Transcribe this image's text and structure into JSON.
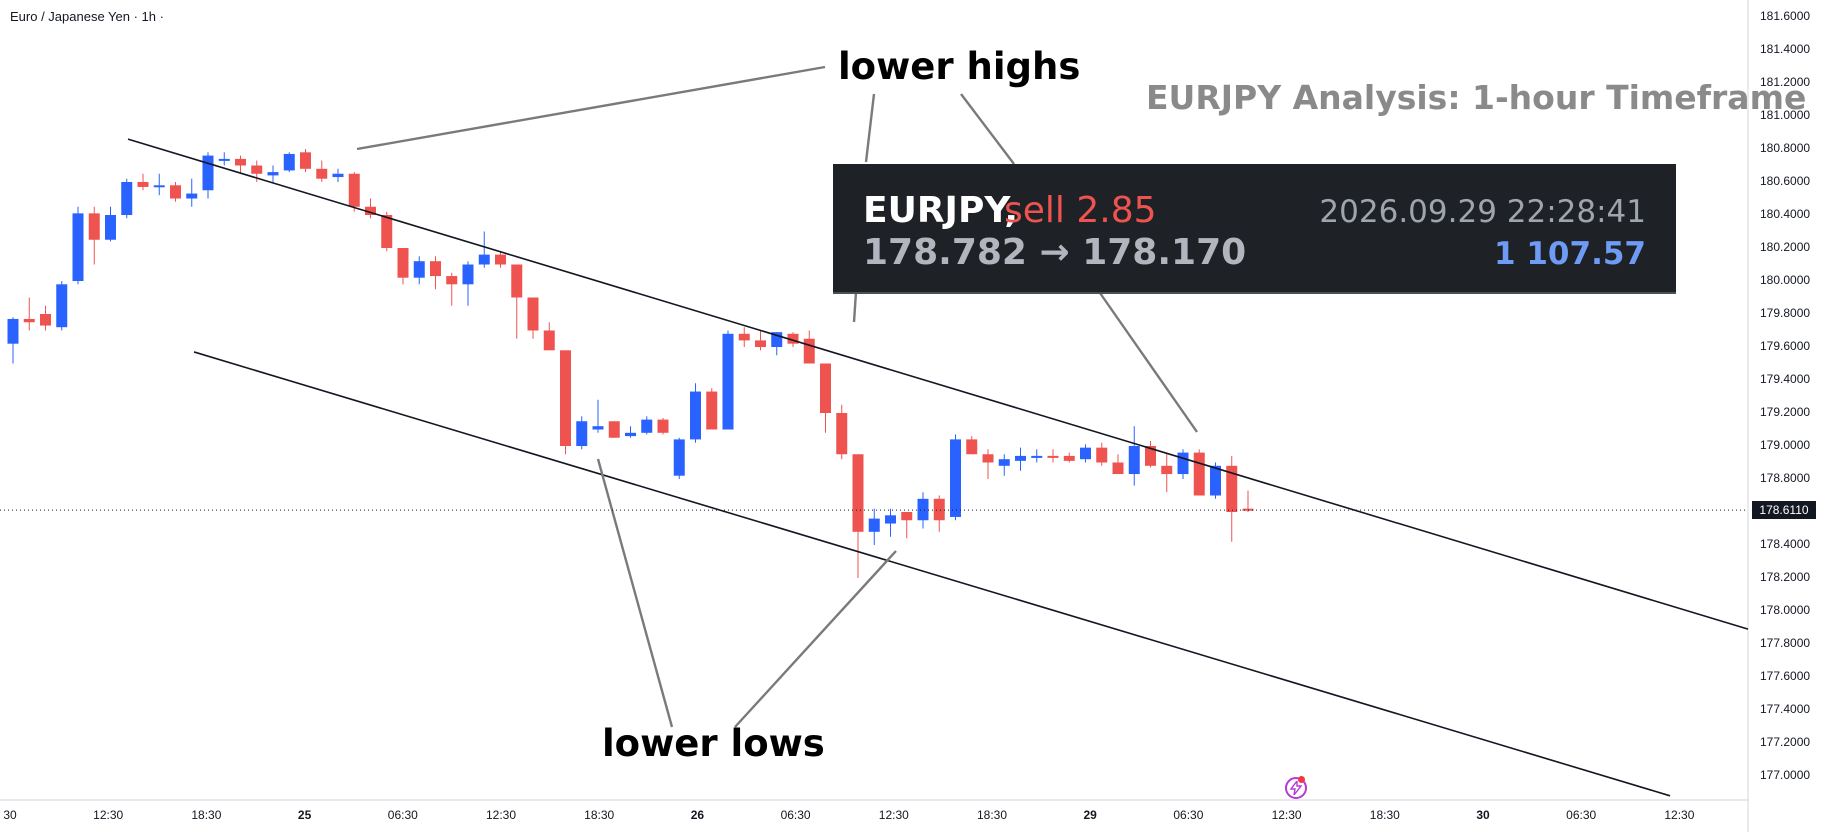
{
  "header": {
    "symbol_title": "Euro / Japanese Yen · 1h ·",
    "analysis_title": "EURJPY Analysis: 1-hour Timeframe"
  },
  "annotations": {
    "lower_highs": "lower highs",
    "lower_lows": "lower lows"
  },
  "trade": {
    "symbol": "EURJPY,",
    "side": "sell 2.85",
    "timestamp": "2026.09.29 22:28:41",
    "prices": "178.782 → 178.170",
    "profit": "1 107.57"
  },
  "colors": {
    "bull": "#2962ff",
    "bear": "#ef5350",
    "channel": "#131722",
    "pointer": "#7a7a7a"
  },
  "chart_data": {
    "type": "candlestick",
    "title": "Euro / Japanese Yen · 1h",
    "ylim": [
      176.9,
      181.65
    ],
    "y_ticks": [
      "181.6000",
      "181.4000",
      "181.2000",
      "181.0000",
      "180.8000",
      "180.6000",
      "180.4000",
      "180.2000",
      "180.0000",
      "179.8000",
      "179.6000",
      "179.4000",
      "179.2000",
      "179.0000",
      "178.8000",
      "178.4000",
      "178.2000",
      "178.0000",
      "177.8000",
      "177.6000",
      "177.4000",
      "177.2000",
      "177.0000"
    ],
    "x_ticks": [
      {
        "label": "30",
        "bold": false
      },
      {
        "label": "12:30",
        "bold": false
      },
      {
        "label": "18:30",
        "bold": false
      },
      {
        "label": "25",
        "bold": true
      },
      {
        "label": "06:30",
        "bold": false
      },
      {
        "label": "12:30",
        "bold": false
      },
      {
        "label": "18:30",
        "bold": false
      },
      {
        "label": "26",
        "bold": true
      },
      {
        "label": "06:30",
        "bold": false
      },
      {
        "label": "12:30",
        "bold": false
      },
      {
        "label": "18:30",
        "bold": false
      },
      {
        "label": "29",
        "bold": true
      },
      {
        "label": "06:30",
        "bold": false
      },
      {
        "label": "12:30",
        "bold": false
      },
      {
        "label": "18:30",
        "bold": false
      },
      {
        "label": "30",
        "bold": true
      },
      {
        "label": "06:30",
        "bold": false
      },
      {
        "label": "12:30",
        "bold": false
      }
    ],
    "last_price": "178.6110",
    "candles": [
      [
        179.62,
        179.78,
        179.5,
        179.77
      ],
      [
        179.77,
        179.9,
        179.7,
        179.75
      ],
      [
        179.8,
        179.85,
        179.7,
        179.73
      ],
      [
        179.72,
        180.0,
        179.7,
        179.98
      ],
      [
        180.0,
        180.45,
        179.98,
        180.41
      ],
      [
        180.41,
        180.45,
        180.1,
        180.25
      ],
      [
        180.25,
        180.45,
        180.24,
        180.4
      ],
      [
        180.4,
        180.62,
        180.38,
        180.6
      ],
      [
        180.6,
        180.65,
        180.55,
        180.57
      ],
      [
        180.58,
        180.65,
        180.52,
        180.58
      ],
      [
        180.58,
        180.6,
        180.48,
        180.5
      ],
      [
        180.5,
        180.62,
        180.45,
        180.53
      ],
      [
        180.55,
        180.78,
        180.5,
        180.76
      ],
      [
        180.73,
        180.78,
        180.7,
        180.74
      ],
      [
        180.74,
        180.76,
        180.65,
        180.7
      ],
      [
        180.7,
        180.73,
        180.6,
        180.65
      ],
      [
        180.64,
        180.7,
        180.6,
        180.66
      ],
      [
        180.67,
        180.78,
        180.66,
        180.77
      ],
      [
        180.78,
        180.8,
        180.66,
        180.68
      ],
      [
        180.68,
        180.73,
        180.6,
        180.62
      ],
      [
        180.63,
        180.68,
        180.6,
        180.65
      ],
      [
        180.65,
        180.66,
        180.42,
        180.45
      ],
      [
        180.45,
        180.5,
        180.38,
        180.4
      ],
      [
        180.4,
        180.42,
        180.18,
        180.2
      ],
      [
        180.2,
        180.2,
        179.98,
        180.02
      ],
      [
        180.02,
        180.15,
        179.98,
        180.12
      ],
      [
        180.12,
        180.15,
        179.95,
        180.03
      ],
      [
        180.03,
        180.05,
        179.85,
        179.98
      ],
      [
        179.98,
        180.12,
        179.85,
        180.1
      ],
      [
        180.1,
        180.3,
        180.08,
        180.16
      ],
      [
        180.16,
        180.18,
        180.08,
        180.1
      ],
      [
        180.1,
        180.1,
        179.65,
        179.9
      ],
      [
        179.9,
        179.9,
        179.65,
        179.7
      ],
      [
        179.7,
        179.75,
        179.58,
        179.58
      ],
      [
        179.58,
        179.58,
        178.95,
        179.0
      ],
      [
        179.0,
        179.18,
        178.98,
        179.15
      ],
      [
        179.1,
        179.28,
        179.08,
        179.12
      ],
      [
        179.15,
        179.15,
        179.05,
        179.05
      ],
      [
        179.06,
        179.12,
        179.05,
        179.08
      ],
      [
        179.08,
        179.18,
        179.07,
        179.16
      ],
      [
        179.16,
        179.17,
        179.07,
        179.08
      ],
      [
        178.82,
        179.05,
        178.8,
        179.04
      ],
      [
        179.04,
        179.38,
        179.02,
        179.33
      ],
      [
        179.33,
        179.35,
        179.1,
        179.1
      ],
      [
        179.1,
        179.7,
        179.1,
        179.68
      ],
      [
        179.68,
        179.72,
        179.6,
        179.64
      ],
      [
        179.64,
        179.7,
        179.58,
        179.6
      ],
      [
        179.6,
        179.69,
        179.55,
        179.69
      ],
      [
        179.68,
        179.69,
        179.6,
        179.62
      ],
      [
        179.65,
        179.7,
        179.5,
        179.5
      ],
      [
        179.5,
        179.5,
        179.08,
        179.2
      ],
      [
        179.2,
        179.25,
        178.92,
        178.95
      ],
      [
        178.95,
        178.95,
        178.2,
        178.48
      ],
      [
        178.48,
        178.62,
        178.4,
        178.56
      ],
      [
        178.53,
        178.62,
        178.45,
        178.58
      ],
      [
        178.6,
        178.6,
        178.44,
        178.55
      ],
      [
        178.55,
        178.72,
        178.5,
        178.68
      ],
      [
        178.68,
        178.7,
        178.48,
        178.55
      ],
      [
        178.57,
        179.07,
        178.55,
        179.04
      ],
      [
        179.04,
        179.06,
        178.95,
        178.95
      ],
      [
        178.95,
        178.98,
        178.8,
        178.9
      ],
      [
        178.88,
        178.95,
        178.82,
        178.92
      ],
      [
        178.91,
        178.99,
        178.85,
        178.94
      ],
      [
        178.93,
        178.98,
        178.9,
        178.94
      ],
      [
        178.94,
        178.98,
        178.9,
        178.93
      ],
      [
        178.94,
        178.96,
        178.9,
        178.91
      ],
      [
        178.92,
        179.01,
        178.9,
        178.99
      ],
      [
        178.99,
        179.02,
        178.88,
        178.9
      ],
      [
        178.9,
        178.95,
        178.83,
        178.83
      ],
      [
        178.83,
        179.12,
        178.76,
        179.0
      ],
      [
        179.0,
        179.03,
        178.87,
        178.88
      ],
      [
        178.88,
        178.95,
        178.72,
        178.83
      ],
      [
        178.83,
        178.98,
        178.8,
        178.96
      ],
      [
        178.96,
        178.98,
        178.7,
        178.7
      ],
      [
        178.7,
        178.9,
        178.68,
        178.88
      ],
      [
        178.88,
        178.94,
        178.42,
        178.6
      ],
      [
        178.62,
        178.73,
        178.6,
        178.61
      ]
    ],
    "channel_upper": [
      [
        0,
        180.86
      ],
      [
        1.0,
        177.89
      ]
    ],
    "channel_lower": [
      [
        0,
        179.57
      ],
      [
        1.0,
        176.88
      ]
    ]
  }
}
